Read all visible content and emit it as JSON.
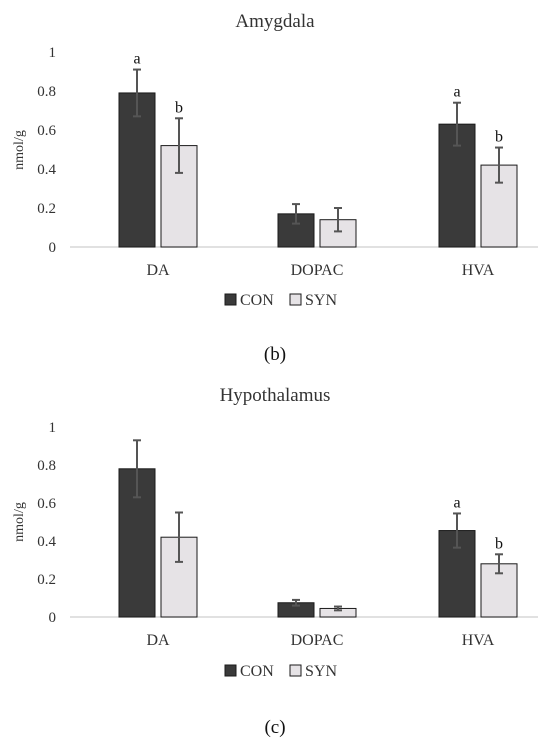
{
  "colors": {
    "con": "#3a3a3a",
    "syn": "#e6e3e6",
    "error": "#555555",
    "axis": "#cfcfcf"
  },
  "panel_labels": [
    "(b)",
    "(c)"
  ],
  "chart_data": [
    {
      "type": "bar",
      "title": "Amygdala",
      "ylabel": "nmol/g",
      "xlabel": "",
      "ylim": [
        0,
        1
      ],
      "yticks": [
        "0",
        "0.2",
        "0.4",
        "0.6",
        "0.8",
        "1"
      ],
      "categories": [
        "DA",
        "DOPAC",
        "HVA"
      ],
      "legend_position": "bottom",
      "series": [
        {
          "name": "CON",
          "values": [
            0.79,
            0.17,
            0.63
          ],
          "errors": [
            0.12,
            0.05,
            0.11
          ],
          "labels": [
            "a",
            "",
            "a"
          ]
        },
        {
          "name": "SYN",
          "values": [
            0.52,
            0.14,
            0.42
          ],
          "errors": [
            0.14,
            0.06,
            0.09
          ],
          "labels": [
            "b",
            "",
            "b"
          ]
        }
      ]
    },
    {
      "type": "bar",
      "title": "Hypothalamus",
      "ylabel": "nmol/g",
      "xlabel": "",
      "ylim": [
        0,
        1
      ],
      "yticks": [
        "0",
        "0.2",
        "0.4",
        "0.6",
        "0.8",
        "1"
      ],
      "categories": [
        "DA",
        "DOPAC",
        "HVA"
      ],
      "legend_position": "bottom",
      "series": [
        {
          "name": "CON",
          "values": [
            0.78,
            0.075,
            0.455
          ],
          "errors": [
            0.15,
            0.015,
            0.09
          ],
          "labels": [
            "",
            "",
            "a"
          ]
        },
        {
          "name": "SYN",
          "values": [
            0.42,
            0.045,
            0.28
          ],
          "errors": [
            0.13,
            0.01,
            0.05
          ],
          "labels": [
            "",
            "",
            "b"
          ]
        }
      ]
    }
  ]
}
